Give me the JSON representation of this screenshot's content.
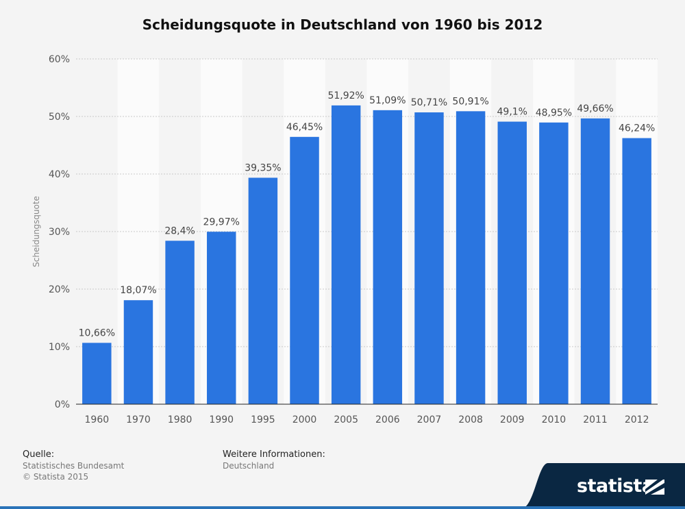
{
  "chart_data": {
    "type": "bar",
    "title": "Scheidungsquote in Deutschland von 1960 bis 2012",
    "ylabel": "Scheidungsquote",
    "xlabel": "",
    "ylim": [
      0,
      60
    ],
    "yticks": [
      "0%",
      "10%",
      "20%",
      "30%",
      "40%",
      "50%",
      "60%"
    ],
    "categories": [
      "1960",
      "1970",
      "1980",
      "1990",
      "1995",
      "2000",
      "2005",
      "2006",
      "2007",
      "2008",
      "2009",
      "2010",
      "2011",
      "2012"
    ],
    "values": [
      10.66,
      18.07,
      28.4,
      29.97,
      39.35,
      46.45,
      51.92,
      51.09,
      50.71,
      50.91,
      49.1,
      48.95,
      49.66,
      46.24
    ],
    "labels": [
      "10,66%",
      "18,07%",
      "28,4%",
      "29,97%",
      "39,35%",
      "46,45%",
      "51,92%",
      "51,09%",
      "50,71%",
      "50,91%",
      "49,1%",
      "48,95%",
      "49,66%",
      "46,24%"
    ],
    "bar_color": "#2a75e0",
    "grid": true
  },
  "footer": {
    "source_heading": "Quelle:",
    "source_line1": "Statistisches Bundesamt",
    "source_line2": "© Statista 2015",
    "info_heading": "Weitere Informationen:",
    "info_line1": "Deutschland"
  },
  "brand": {
    "name": "statista",
    "color": "#0a2742"
  }
}
